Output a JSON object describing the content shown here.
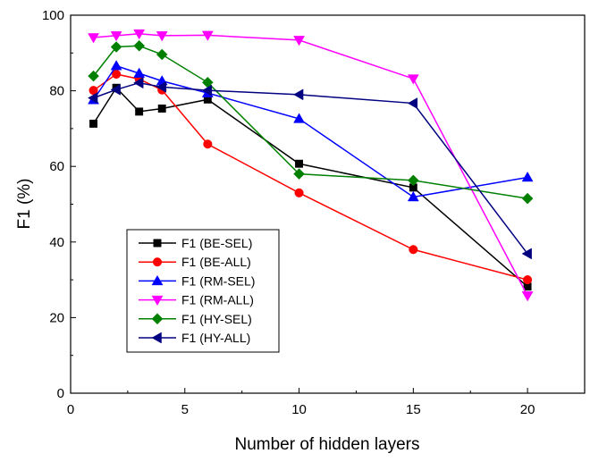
{
  "chart_data": {
    "type": "line",
    "title": "",
    "xlabel": "Number of hidden layers",
    "ylabel": "F1 (%)",
    "xlim": [
      0,
      22.5
    ],
    "ylim": [
      0,
      100
    ],
    "xticks": [
      0,
      5,
      10,
      15,
      20
    ],
    "yticks": [
      0,
      20,
      40,
      60,
      80,
      100
    ],
    "grid": false,
    "legend_position": "bottom-left",
    "x": [
      1,
      2,
      3,
      4,
      6,
      10,
      15,
      20
    ],
    "series": [
      {
        "name": "F1 (BE-SEL)",
        "color": "#000000",
        "marker": "square",
        "values": [
          71.3,
          80.8,
          74.5,
          75.3,
          77.7,
          60.7,
          54.4,
          28.2
        ]
      },
      {
        "name": "F1 (BE-ALL)",
        "color": "#ff0000",
        "marker": "circle",
        "values": [
          80.1,
          84.4,
          83.1,
          80.2,
          65.9,
          53.0,
          38.0,
          30.0
        ]
      },
      {
        "name": "F1 (RM-SEL)",
        "color": "#0000ff",
        "marker": "triangle-up",
        "values": [
          77.6,
          86.6,
          84.6,
          82.6,
          79.4,
          72.6,
          51.9,
          57.1
        ]
      },
      {
        "name": "F1 (RM-ALL)",
        "color": "#ff00ff",
        "marker": "triangle-down",
        "values": [
          94.1,
          94.6,
          95.1,
          94.6,
          94.7,
          93.4,
          83.2,
          25.8
        ]
      },
      {
        "name": "F1 (HY-SEL)",
        "color": "#008000",
        "marker": "diamond",
        "values": [
          83.9,
          91.6,
          91.9,
          89.6,
          82.2,
          58.0,
          56.3,
          51.5
        ]
      },
      {
        "name": "F1 (HY-ALL)",
        "color": "#000080",
        "marker": "triangle-left",
        "values": [
          78.1,
          80.3,
          82.1,
          81.0,
          80.1,
          79.0,
          76.7,
          36.9
        ]
      }
    ]
  }
}
